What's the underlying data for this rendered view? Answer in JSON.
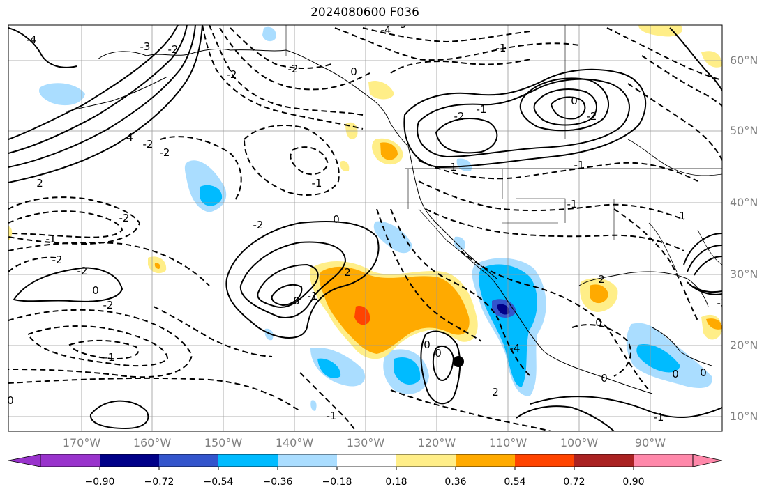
{
  "title": "2024080600 F036",
  "map": {
    "lat_labels": [
      "60°N",
      "50°N",
      "40°N",
      "30°N",
      "20°N",
      "10°N"
    ],
    "lon_labels": [
      "170°W",
      "160°W",
      "150°W",
      "140°W",
      "130°W",
      "120°W",
      "110°W",
      "100°W",
      "90°W"
    ],
    "contour_labels": [
      "-4",
      "-4",
      "-3",
      "-2",
      "-2",
      "-2",
      "-1",
      "0",
      "4",
      "-2",
      "2",
      "-2",
      "-1",
      "-2",
      "-1",
      "-2",
      "-2",
      "0",
      "-2",
      "-1",
      "1",
      "0",
      "-1",
      "-1",
      "-2",
      "-2",
      "0",
      "2",
      "0",
      "-1",
      "-1",
      "0",
      "2",
      "0",
      "-1",
      "0",
      "0",
      "1",
      "0",
      "-1",
      "0",
      "0",
      "2",
      "-4",
      "-3",
      "-2",
      "-3"
    ],
    "storm_marker": "tropical-cyclone-position"
  },
  "colorbar": {
    "ticks": [
      "−0.90",
      "−0.72",
      "−0.54",
      "−0.36",
      "−0.18",
      "0.18",
      "0.36",
      "0.54",
      "0.72",
      "0.90"
    ],
    "colors": [
      "#9933cc",
      "#000088",
      "#3355cc",
      "#00bbff",
      "#aaddff",
      "#ffffff",
      "#ffee88",
      "#ffaa00",
      "#ff4400",
      "#aa2222",
      "#ff88aa"
    ]
  }
}
